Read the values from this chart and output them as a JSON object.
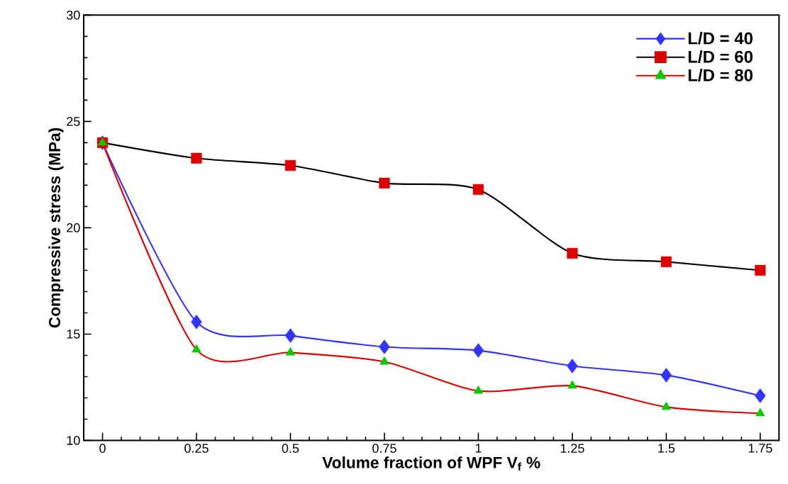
{
  "chart_data": {
    "type": "line",
    "xlabel": "Volume fraction of WPF V$_{f}$ %",
    "ylabel": "Compressive stress (MPa)",
    "x": [
      0,
      0.25,
      0.5,
      0.75,
      1,
      1.25,
      1.5,
      1.75
    ],
    "series": [
      {
        "name": "L/D = 40",
        "color": "#3333ff",
        "colors": [
          "#3333ff",
          "#3333ff",
          "#3333ff",
          "#3333ff",
          "#3333ff",
          "#3333ff",
          "#3333ff",
          "#3333ff"
        ],
        "marker": "diamond",
        "values": [
          24.0,
          15.57,
          14.93,
          14.4,
          14.23,
          13.5,
          13.07,
          12.1
        ]
      },
      {
        "name": "L/D = 60",
        "color": "#000000",
        "colors": [
          "#dd0000",
          "#dd0000",
          "#dd0000",
          "#dd0000",
          "#dd0000",
          "#dd0000",
          "#dd0000",
          "#dd0000"
        ],
        "marker": "square",
        "values": [
          24.0,
          23.27,
          22.93,
          22.1,
          21.8,
          18.8,
          18.4,
          18.0
        ]
      },
      {
        "name": "L/D = 80",
        "color": "#dd0000",
        "colors": [
          "#00cc00",
          "#00cc00",
          "#00cc00",
          "#00cc00",
          "#00cc00",
          "#00cc00",
          "#00cc00",
          "#00cc00"
        ],
        "marker": "triangle",
        "values": [
          24.0,
          14.27,
          14.13,
          13.7,
          12.33,
          12.57,
          11.57,
          11.27
        ]
      }
    ],
    "xlim": [
      -0.05,
      1.8
    ],
    "ylim": [
      10,
      30
    ],
    "xticks": [
      0,
      0.25,
      0.5,
      0.75,
      1,
      1.25,
      1.5,
      1.75
    ],
    "yticks": [
      10,
      15,
      20,
      25,
      30
    ],
    "grid": false,
    "legend": "top right",
    "line_style": "solid"
  }
}
